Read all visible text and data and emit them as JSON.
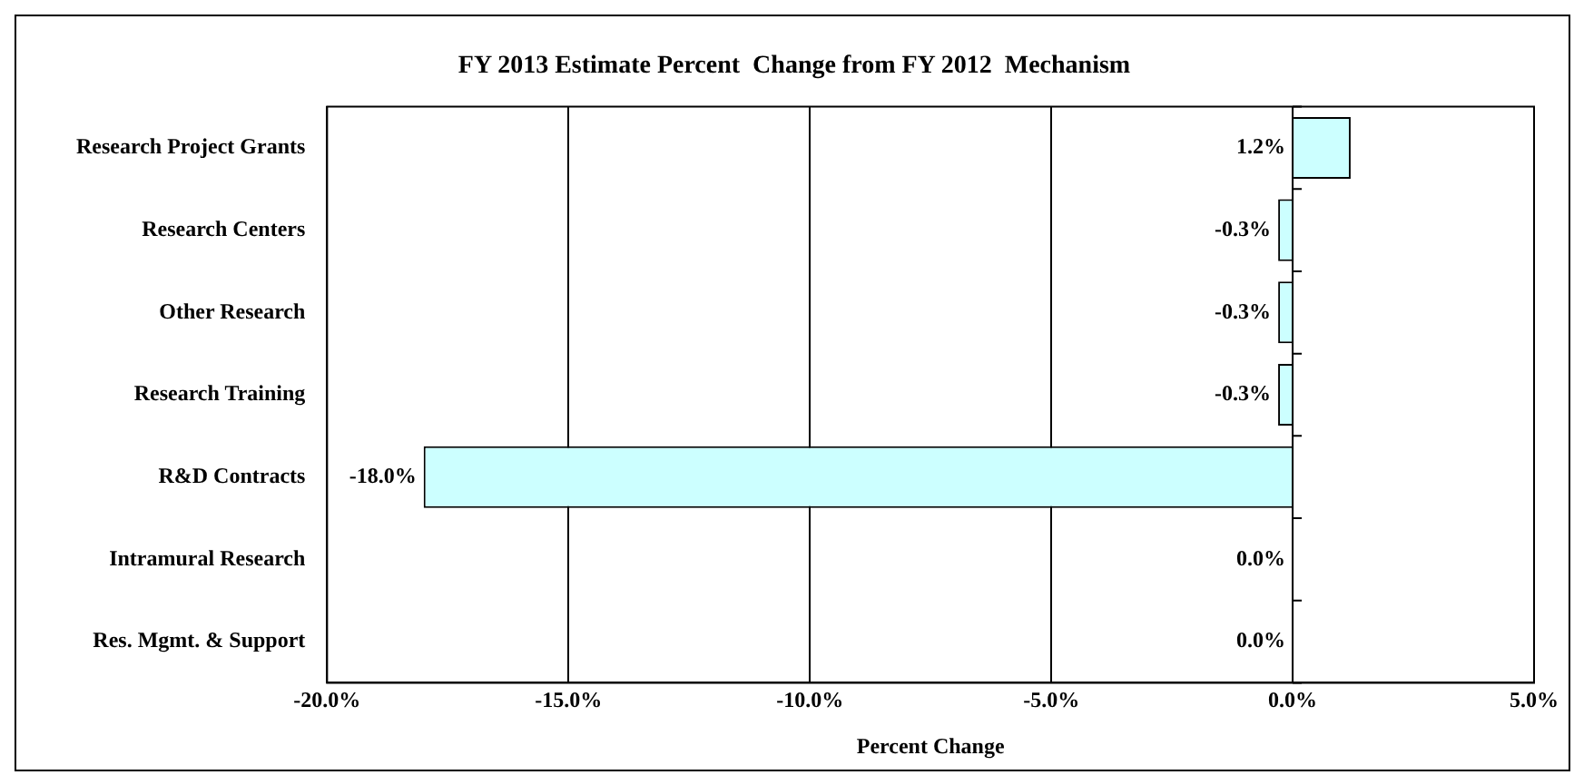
{
  "chart_data": {
    "type": "bar",
    "orientation": "horizontal",
    "title": "FY 2013 Estimate Percent  Change from FY 2012  Mechanism",
    "xlabel": "Percent Change",
    "categories": [
      "Research Project Grants",
      "Research Centers",
      "Other Research",
      "Research Training",
      "R&D Contracts",
      "Intramural Research",
      "Res. Mgmt. & Support"
    ],
    "values": [
      1.2,
      -0.3,
      -0.3,
      -0.3,
      -18.0,
      0.0,
      0.0
    ],
    "value_labels": [
      "1.2%",
      "-0.3%",
      "-0.3%",
      "-0.3%",
      "-18.0%",
      "0.0%",
      "0.0%"
    ],
    "color": "#ccffff",
    "xlim": [
      -20,
      5
    ],
    "xticks": [
      {
        "value": -20,
        "label": "-20.0%"
      },
      {
        "value": -15,
        "label": "-15.0%"
      },
      {
        "value": -10,
        "label": "-10.0%"
      },
      {
        "value": -5,
        "label": "-5.0%"
      },
      {
        "value": 0,
        "label": "0.0%"
      },
      {
        "value": 5,
        "label": "5.0%"
      }
    ],
    "grid": "x",
    "legend": false
  }
}
